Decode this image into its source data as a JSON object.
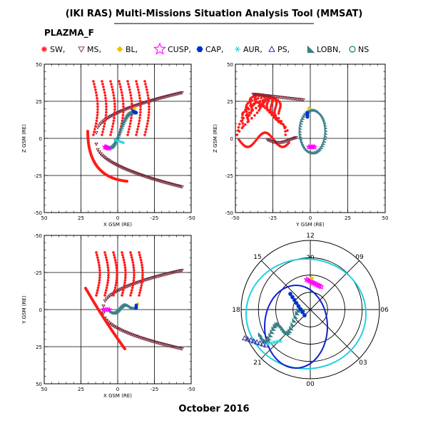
{
  "header": {
    "title": "(IKI RAS) Multi-Missions Situation Analysis Tool (MMSAT)",
    "subtitle": "PLAZMA_F",
    "date": "October 2016"
  },
  "legend": [
    {
      "label": "SW,",
      "color": "#ff2020",
      "icon": "small-star-icon"
    },
    {
      "label": "MS,",
      "color": "#7a2a3a",
      "icon": "down-triangle-icon"
    },
    {
      "label": "BL,",
      "color": "#f0c000",
      "icon": "diamond-icon"
    },
    {
      "label": "CUSP,",
      "color": "#ff00ff",
      "icon": "star-outline-icon"
    },
    {
      "label": "CAP,",
      "color": "#0030d0",
      "icon": "filled-hexagon-icon"
    },
    {
      "label": "AUR,",
      "color": "#20d0e0",
      "icon": "asterisk-icon"
    },
    {
      "label": "PS,",
      "color": "#2a2aa0",
      "icon": "triangle-outline-icon"
    },
    {
      "label": "LOBN,",
      "color": "#3a8088",
      "icon": "filled-wedge-icon"
    },
    {
      "label": "NS",
      "color": "#108060",
      "icon": "circle-outline-icon"
    }
  ],
  "colors": {
    "sw": "#ff1a1a",
    "ms": "#6e2535",
    "bl": "#f5c800",
    "cusp": "#ff00ff",
    "cap": "#0030d0",
    "aur": "#22d4e6",
    "ps": "#2a2aa0",
    "lobn": "#3a8088",
    "ns": "#108060",
    "polar_blue": "#1020d0",
    "polar_cyan": "#20d0e0"
  },
  "panels": {
    "xz": {
      "xlabel": "X GSM (RE)",
      "ylabel": "Z GSM (RE)",
      "xticks": [
        "50",
        "25",
        "0",
        "-25",
        "-50"
      ],
      "yticks": [
        "50",
        "25",
        "0",
        "-25",
        "-50"
      ]
    },
    "yz": {
      "xlabel": "Y GSM (RE)",
      "ylabel": "Z GSM (RE)",
      "xticks": [
        "-50",
        "-25",
        "0",
        "25",
        "50"
      ],
      "yticks": [
        "50",
        "25",
        "0",
        "-25",
        "-50"
      ]
    },
    "xy": {
      "xlabel": "X GSM (RE)",
      "ylabel": "Y GSM (RE)",
      "xticks": [
        "50",
        "25",
        "0",
        "-25",
        "-50"
      ],
      "yticks": [
        "-50",
        "-25",
        "0",
        "25",
        "50"
      ]
    },
    "polar": {
      "hours": [
        "12",
        "09",
        "06",
        "03",
        "00",
        "21",
        "18",
        "15"
      ],
      "inner_label": "20"
    }
  },
  "chart_data": [
    {
      "type": "scatter",
      "panel": "XZ",
      "xlabel": "X GSM (RE)",
      "ylabel": "Z GSM (RE)",
      "xlim": [
        50,
        -50
      ],
      "ylim": [
        -50,
        50
      ],
      "grid": true
    },
    {
      "type": "scatter",
      "panel": "YZ",
      "xlabel": "Y GSM (RE)",
      "ylabel": "Z GSM (RE)",
      "xlim": [
        -50,
        50
      ],
      "ylim": [
        -50,
        50
      ],
      "grid": true
    },
    {
      "type": "scatter",
      "panel": "XY",
      "xlabel": "X GSM (RE)",
      "ylabel": "Y GSM (RE)",
      "xlim": [
        50,
        -50
      ],
      "ylim": [
        50,
        -50
      ],
      "grid": true
    },
    {
      "type": "scatter",
      "panel": "polar-MLT",
      "hour_labels": [
        "12",
        "09",
        "06",
        "03",
        "00",
        "21",
        "18",
        "15"
      ],
      "ring_label": "20"
    }
  ]
}
